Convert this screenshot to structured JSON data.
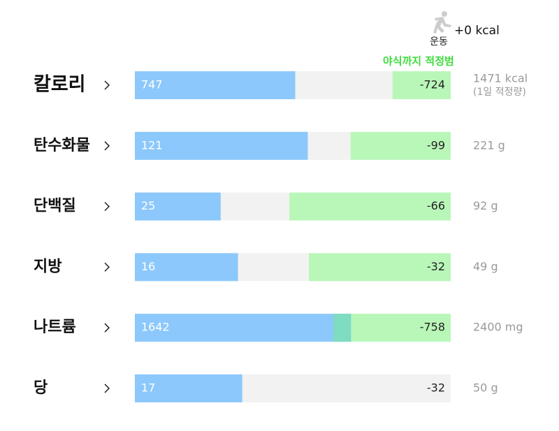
{
  "header": {
    "exercise_label": "운동",
    "exercise_kcal": "+0 kcal",
    "range_note": "야식까지 적정범"
  },
  "rows": [
    {
      "label": "칼로리",
      "value": 747,
      "remaining": -724,
      "range_start": 1200,
      "target": {
        "value": 1471,
        "label": "1471 kcal"
      },
      "target_note": "(1일 적정량)"
    },
    {
      "label": "탄수화물",
      "value": 121,
      "remaining": -99,
      "range_start": 151,
      "target": {
        "value": 221,
        "label": "221 g"
      }
    },
    {
      "label": "단백질",
      "value": 25,
      "remaining": -66,
      "range_start": 45,
      "target": {
        "value": 92,
        "label": "92 g"
      }
    },
    {
      "label": "지방",
      "value": 16,
      "remaining": -32,
      "range_start": 27,
      "target": {
        "value": 49,
        "label": "49 g"
      }
    },
    {
      "label": "나트륨",
      "value": 1642,
      "remaining": -758,
      "range_start": 1508,
      "target": {
        "value": 2400,
        "label": "2400 mg"
      }
    },
    {
      "label": "당",
      "value": 17,
      "remaining": -32,
      "target": {
        "value": 50,
        "label": "50 g"
      }
    }
  ]
}
